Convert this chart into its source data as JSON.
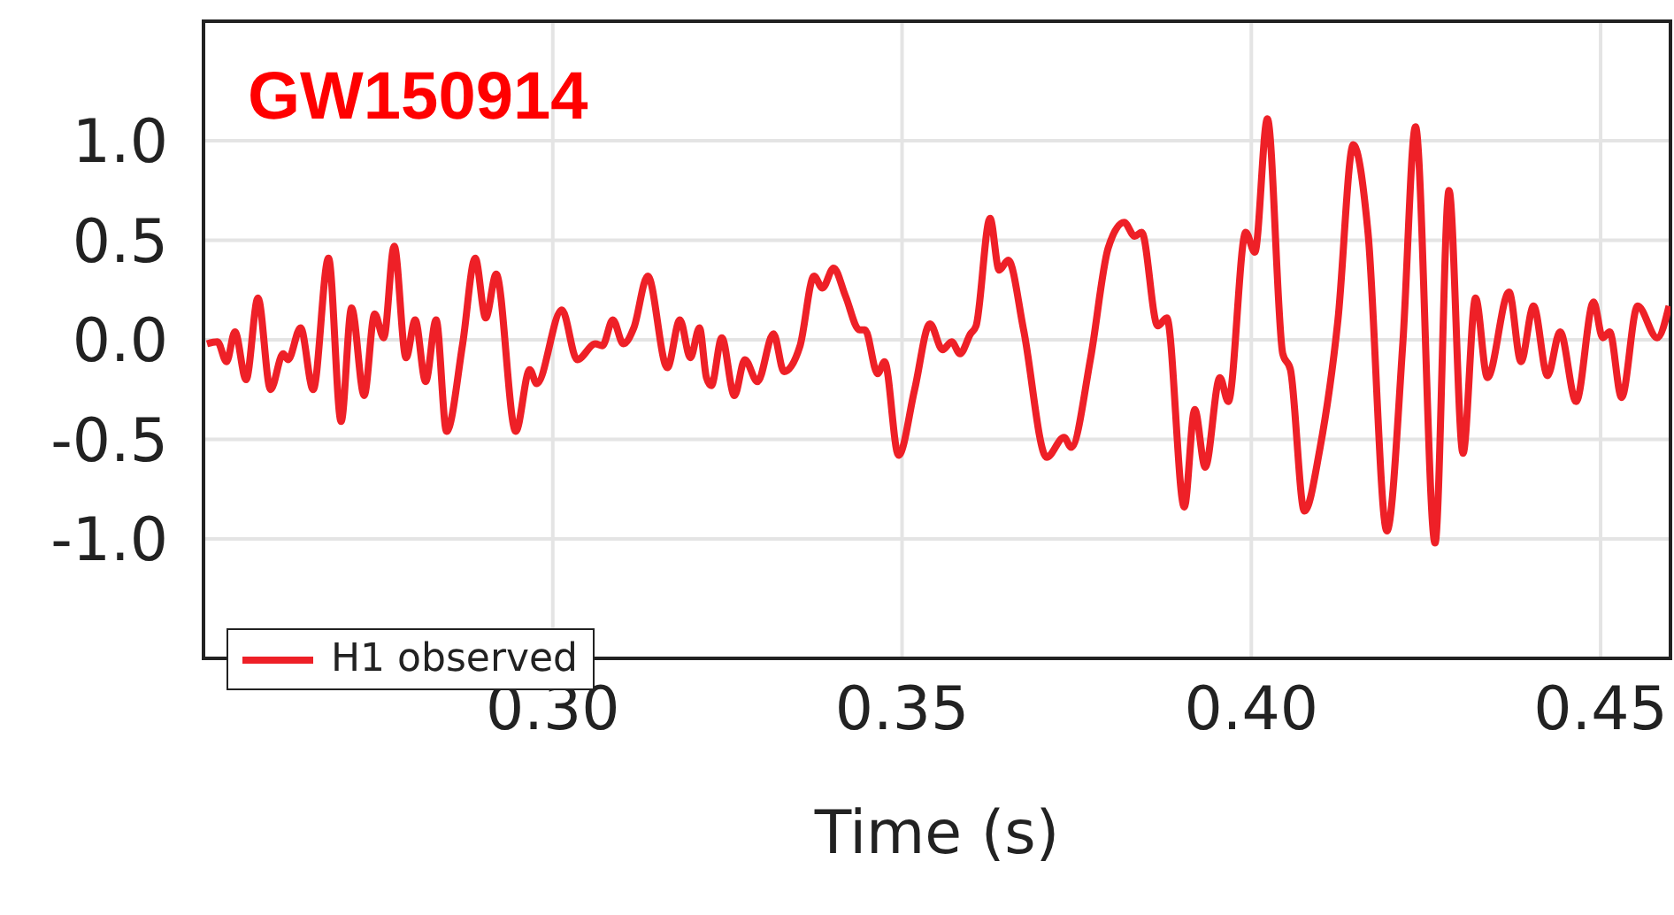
{
  "chart_data": {
    "type": "line",
    "title": "GW150914",
    "xlabel": "Time (s)",
    "xlim": [
      0.25,
      0.46
    ],
    "xticks": [
      {
        "value": 0.3,
        "label": "0.30"
      },
      {
        "value": 0.35,
        "label": "0.35"
      },
      {
        "value": 0.4,
        "label": "0.40"
      },
      {
        "value": 0.45,
        "label": "0.45"
      }
    ],
    "ylim": [
      -1.6,
      1.6
    ],
    "yticks": [
      {
        "value": -1,
        "label": "-1.0"
      },
      {
        "value": -0.5,
        "label": "-0.5"
      },
      {
        "value": 0,
        "label": "0.0"
      },
      {
        "value": 0.5,
        "label": "0.5"
      },
      {
        "value": 1,
        "label": "1.0"
      }
    ],
    "grid": true,
    "legend": "bottom left",
    "marker": "none",
    "line_style": "solid",
    "series": [
      {
        "name": "H1 observed",
        "color": "#ee2027",
        "x": [
          0.2505,
          0.252,
          0.2533,
          0.2545,
          0.2561,
          0.2578,
          0.2596,
          0.2614,
          0.2621,
          0.2639,
          0.2657,
          0.2679,
          0.2697,
          0.2712,
          0.273,
          0.2745,
          0.2758,
          0.2773,
          0.279,
          0.2803,
          0.2818,
          0.2833,
          0.2848,
          0.2871,
          0.2889,
          0.2904,
          0.2919,
          0.2947,
          0.2967,
          0.2977,
          0.3013,
          0.3035,
          0.3061,
          0.3071,
          0.3086,
          0.3101,
          0.3116,
          0.3136,
          0.3164,
          0.3182,
          0.3197,
          0.321,
          0.322,
          0.3227,
          0.3242,
          0.326,
          0.3275,
          0.3293,
          0.3316,
          0.3331,
          0.3354,
          0.3374,
          0.3386,
          0.3402,
          0.3419,
          0.3439,
          0.3447,
          0.3465,
          0.3475,
          0.3495,
          0.3518,
          0.354,
          0.3558,
          0.3571,
          0.3583,
          0.3598,
          0.3606,
          0.3626,
          0.3639,
          0.3652,
          0.3674,
          0.3707,
          0.3732,
          0.3742,
          0.377,
          0.3795,
          0.3818,
          0.3833,
          0.3843,
          0.3866,
          0.3879,
          0.3904,
          0.3919,
          0.3934,
          0.3955,
          0.3967,
          0.3992,
          0.4005,
          0.4023,
          0.4045,
          0.4056,
          0.4076,
          0.4098,
          0.4124,
          0.4146,
          0.4167,
          0.4194,
          0.4217,
          0.4235,
          0.4263,
          0.4283,
          0.4303,
          0.4321,
          0.4338,
          0.4369,
          0.4386,
          0.4404,
          0.4424,
          0.4442,
          0.4465,
          0.449,
          0.4503,
          0.4513,
          0.453,
          0.4553,
          0.4581,
          0.4598
        ],
        "values": [
          -0.02,
          -0.01,
          -0.11,
          0.04,
          -0.2,
          0.21,
          -0.25,
          -0.07,
          -0.1,
          0.06,
          -0.25,
          0.41,
          -0.41,
          0.16,
          -0.28,
          0.13,
          0.01,
          0.47,
          -0.09,
          0.1,
          -0.21,
          0.1,
          -0.46,
          -0.02,
          0.41,
          0.11,
          0.33,
          -0.46,
          -0.15,
          -0.22,
          0.15,
          -0.1,
          -0.02,
          -0.03,
          0.1,
          -0.02,
          0.06,
          0.32,
          -0.14,
          0.1,
          -0.09,
          0.06,
          -0.19,
          -0.23,
          0.01,
          -0.28,
          -0.1,
          -0.21,
          0.03,
          -0.16,
          -0.03,
          0.32,
          0.26,
          0.36,
          0.22,
          0.05,
          0.05,
          -0.17,
          -0.11,
          -0.58,
          -0.25,
          0.08,
          -0.05,
          -0.01,
          -0.07,
          0.03,
          0.07,
          0.61,
          0.35,
          0.4,
          0.05,
          -0.59,
          -0.49,
          -0.54,
          -0.09,
          0.46,
          0.59,
          0.52,
          0.54,
          0.07,
          0.11,
          -0.84,
          -0.35,
          -0.64,
          -0.19,
          -0.31,
          0.54,
          0.44,
          1.11,
          -0.07,
          -0.15,
          -0.86,
          -0.55,
          0.1,
          0.98,
          0.54,
          -0.96,
          -0.01,
          1.07,
          -1.02,
          0.75,
          -0.57,
          0.21,
          -0.19,
          0.24,
          -0.11,
          0.17,
          -0.18,
          0.04,
          -0.31,
          0.19,
          0.01,
          0.04,
          -0.29,
          0.17,
          0.01,
          0.17
        ]
      }
    ]
  }
}
